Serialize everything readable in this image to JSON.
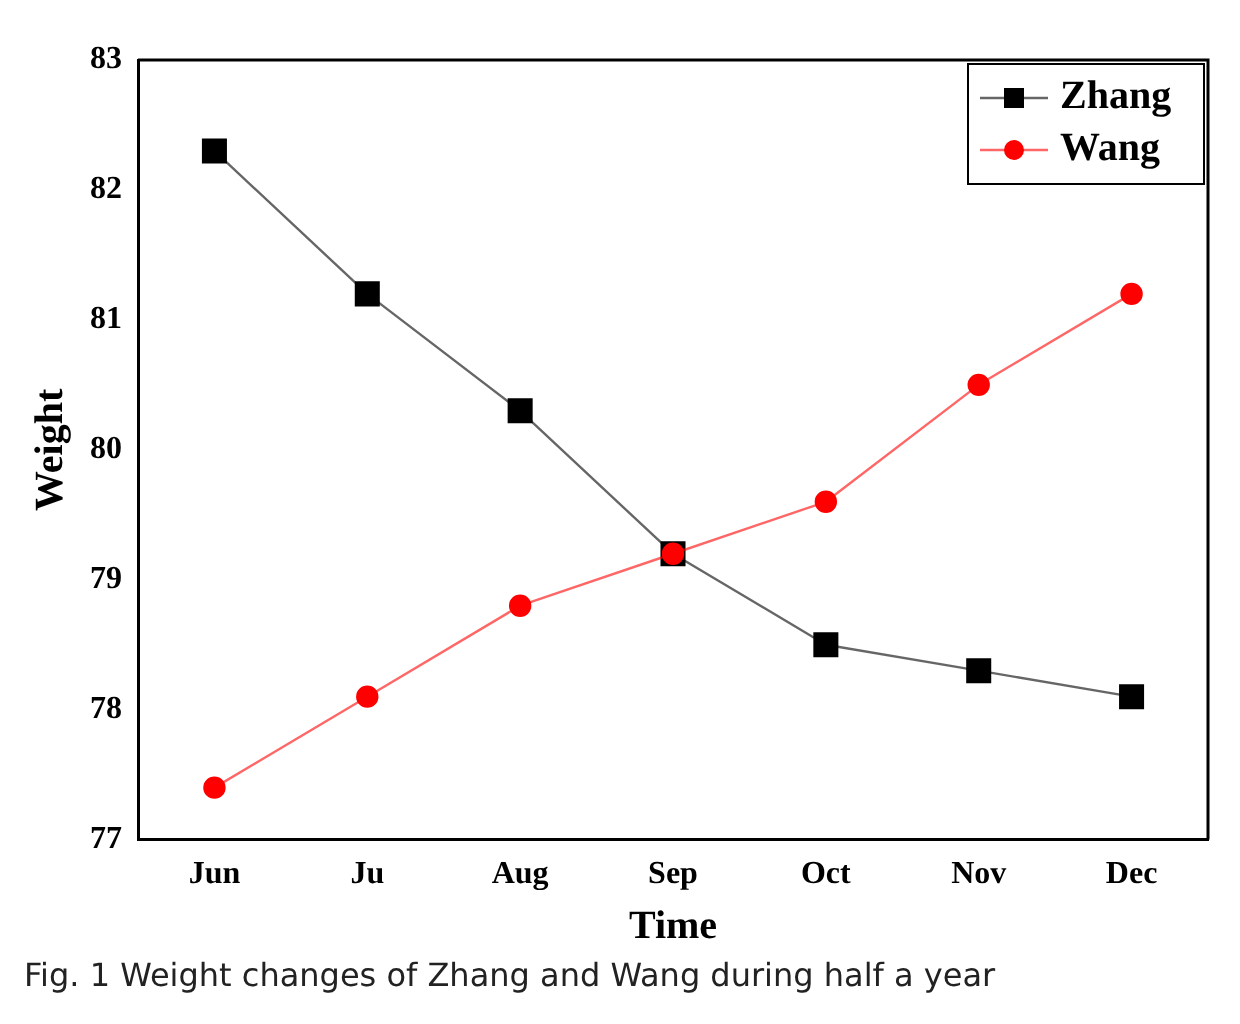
{
  "chart_data": {
    "type": "line",
    "xlabel": "Time",
    "ylabel": "Weight",
    "categories": [
      "Jun",
      "Ju",
      "Aug",
      "Sep",
      "Oct",
      "Nov",
      "Dec"
    ],
    "series": [
      {
        "name": "Zhang",
        "color": "#000000",
        "marker": "square",
        "values": [
          82.3,
          81.2,
          80.3,
          79.2,
          78.5,
          78.3,
          78.1
        ]
      },
      {
        "name": "Wang",
        "color": "#ff0000",
        "marker": "circle",
        "values": [
          77.4,
          78.1,
          78.8,
          79.2,
          79.6,
          80.5,
          81.2
        ]
      }
    ],
    "ylim": [
      77,
      83
    ],
    "yticks": [
      77,
      78,
      79,
      80,
      81,
      82,
      83
    ],
    "grid": false,
    "legend": "top right",
    "line_style": "solid",
    "annotations": [
      "Fig. 1  Weight changes of Zhang and Wang during half a year"
    ]
  }
}
